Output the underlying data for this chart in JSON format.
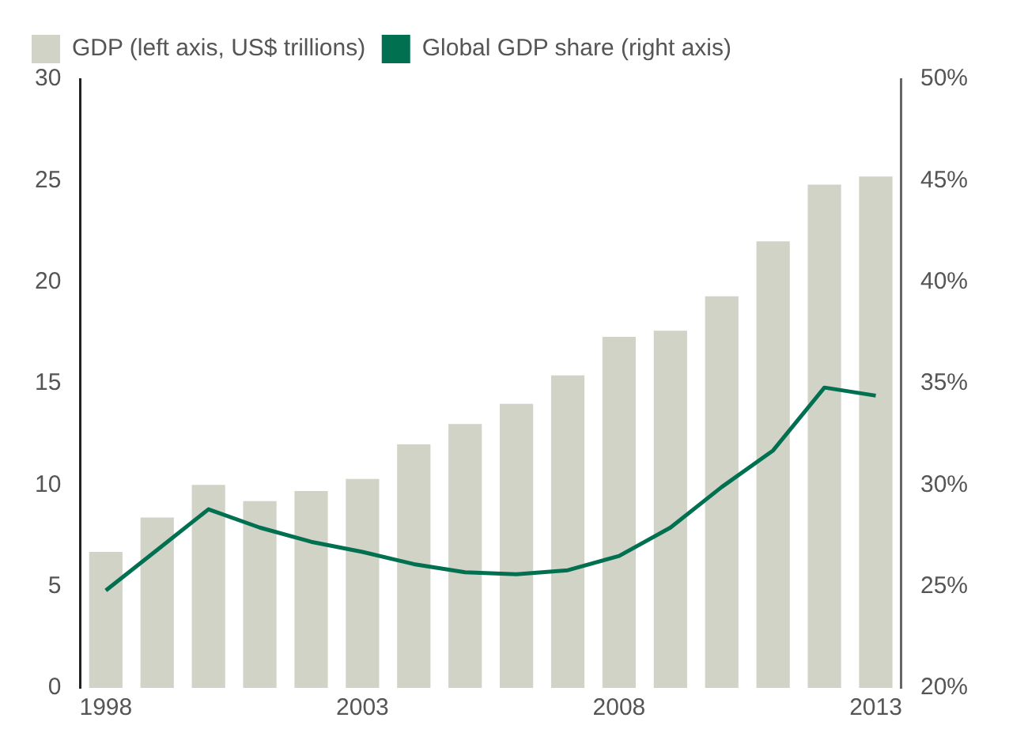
{
  "chart_data": {
    "type": "bar",
    "categories": [
      "1998",
      null,
      null,
      null,
      null,
      "2003",
      null,
      null,
      null,
      null,
      "2008",
      null,
      null,
      null,
      null,
      "2013"
    ],
    "series": [
      {
        "name": "GDP (left axis, US$ trillions)",
        "color": "#d0d3c5",
        "values": [
          6.7,
          8.4,
          10.0,
          9.2,
          9.7,
          10.3,
          12.0,
          13.0,
          14.0,
          15.4,
          17.3,
          17.6,
          19.3,
          22.0,
          24.8,
          25.2
        ]
      },
      {
        "name": "Global GDP share (right axis)",
        "type": "line",
        "axis": "y2",
        "color": "#007050",
        "values": [
          24.8,
          26.8,
          28.8,
          27.9,
          27.2,
          26.7,
          26.1,
          25.7,
          25.6,
          25.8,
          26.5,
          27.9,
          29.9,
          31.7,
          34.8,
          34.4
        ]
      }
    ],
    "ylim": [
      0,
      30
    ],
    "yticks": [
      0,
      5,
      10,
      15,
      20,
      25,
      30
    ],
    "y2lim": [
      20,
      50
    ],
    "y2ticks": [
      {
        "value": 20,
        "label": "20%"
      },
      {
        "value": 25,
        "label": "25%"
      },
      {
        "value": 30,
        "label": "30%"
      },
      {
        "value": 35,
        "label": "35%"
      },
      {
        "value": 40,
        "label": "40%"
      },
      {
        "value": 45,
        "label": "45%"
      },
      {
        "value": 50,
        "label": "50%"
      }
    ],
    "grid": false,
    "legend": "top left",
    "marker": "none",
    "line_style": "solid"
  }
}
